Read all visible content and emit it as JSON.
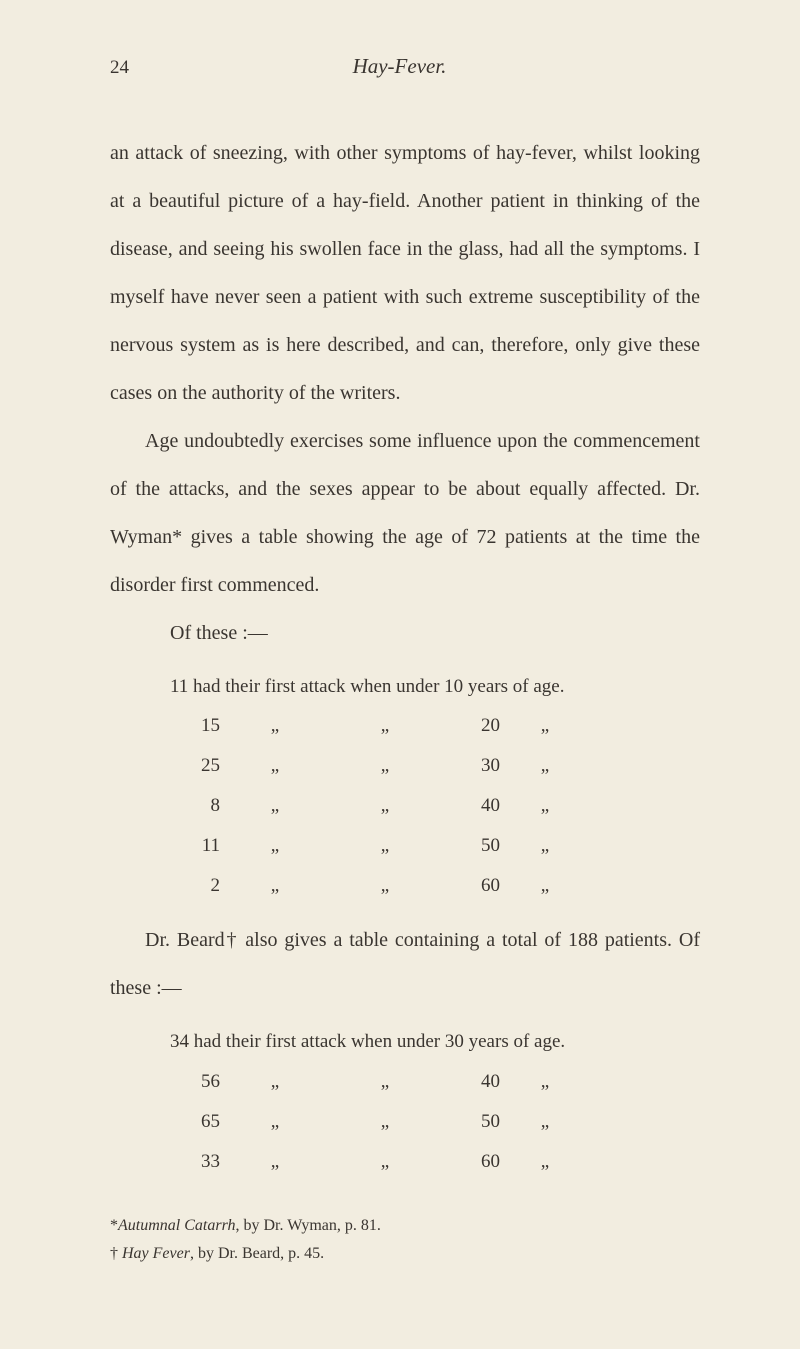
{
  "page_number": "24",
  "running_title": "Hay-Fever.",
  "paragraph1": "an attack of sneezing, with other symptoms of hay-fever, whilst looking at a beautiful picture of a hay-field. Another patient in thinking of the disease, and seeing his swollen face in the glass, had all the symptoms. I myself have never seen a patient with such extreme susceptibility of the nervous system as is here described, and can, therefore, only give these cases on the authority of the writers.",
  "paragraph2": "Age undoubtedly exercises some influence upon the commencement of the attacks, and the sexes appear to be about equally affected. Dr. Wyman* gives a table showing the age of 72 patients at the time the disorder first commenced.",
  "of_these": "Of these :—",
  "table1_first_row": "11 had their first attack when under 10 years of age.",
  "table1": {
    "rows": [
      {
        "count": "15",
        "age": "20"
      },
      {
        "count": "25",
        "age": "30"
      },
      {
        "count": "8",
        "age": "40"
      },
      {
        "count": "11",
        "age": "50"
      },
      {
        "count": "2",
        "age": "60"
      }
    ]
  },
  "paragraph3_part1": "Dr. Beard† also gives a table containing a total of 188 patients. Of these :—",
  "table2_first_row": "34 had their first attack when under 30 years of age.",
  "table2": {
    "rows": [
      {
        "count": "56",
        "age": "40"
      },
      {
        "count": "65",
        "age": "50"
      },
      {
        "count": "33",
        "age": "60"
      }
    ]
  },
  "footnote1_marker": "*",
  "footnote1_italic": "Autumnal Catarrh",
  "footnote1_rest": ", by Dr. Wyman, p. 81.",
  "footnote2_marker": "†",
  "footnote2_italic": " Hay Fever",
  "footnote2_rest": ", by Dr. Beard, p. 45.",
  "ditto": "„"
}
